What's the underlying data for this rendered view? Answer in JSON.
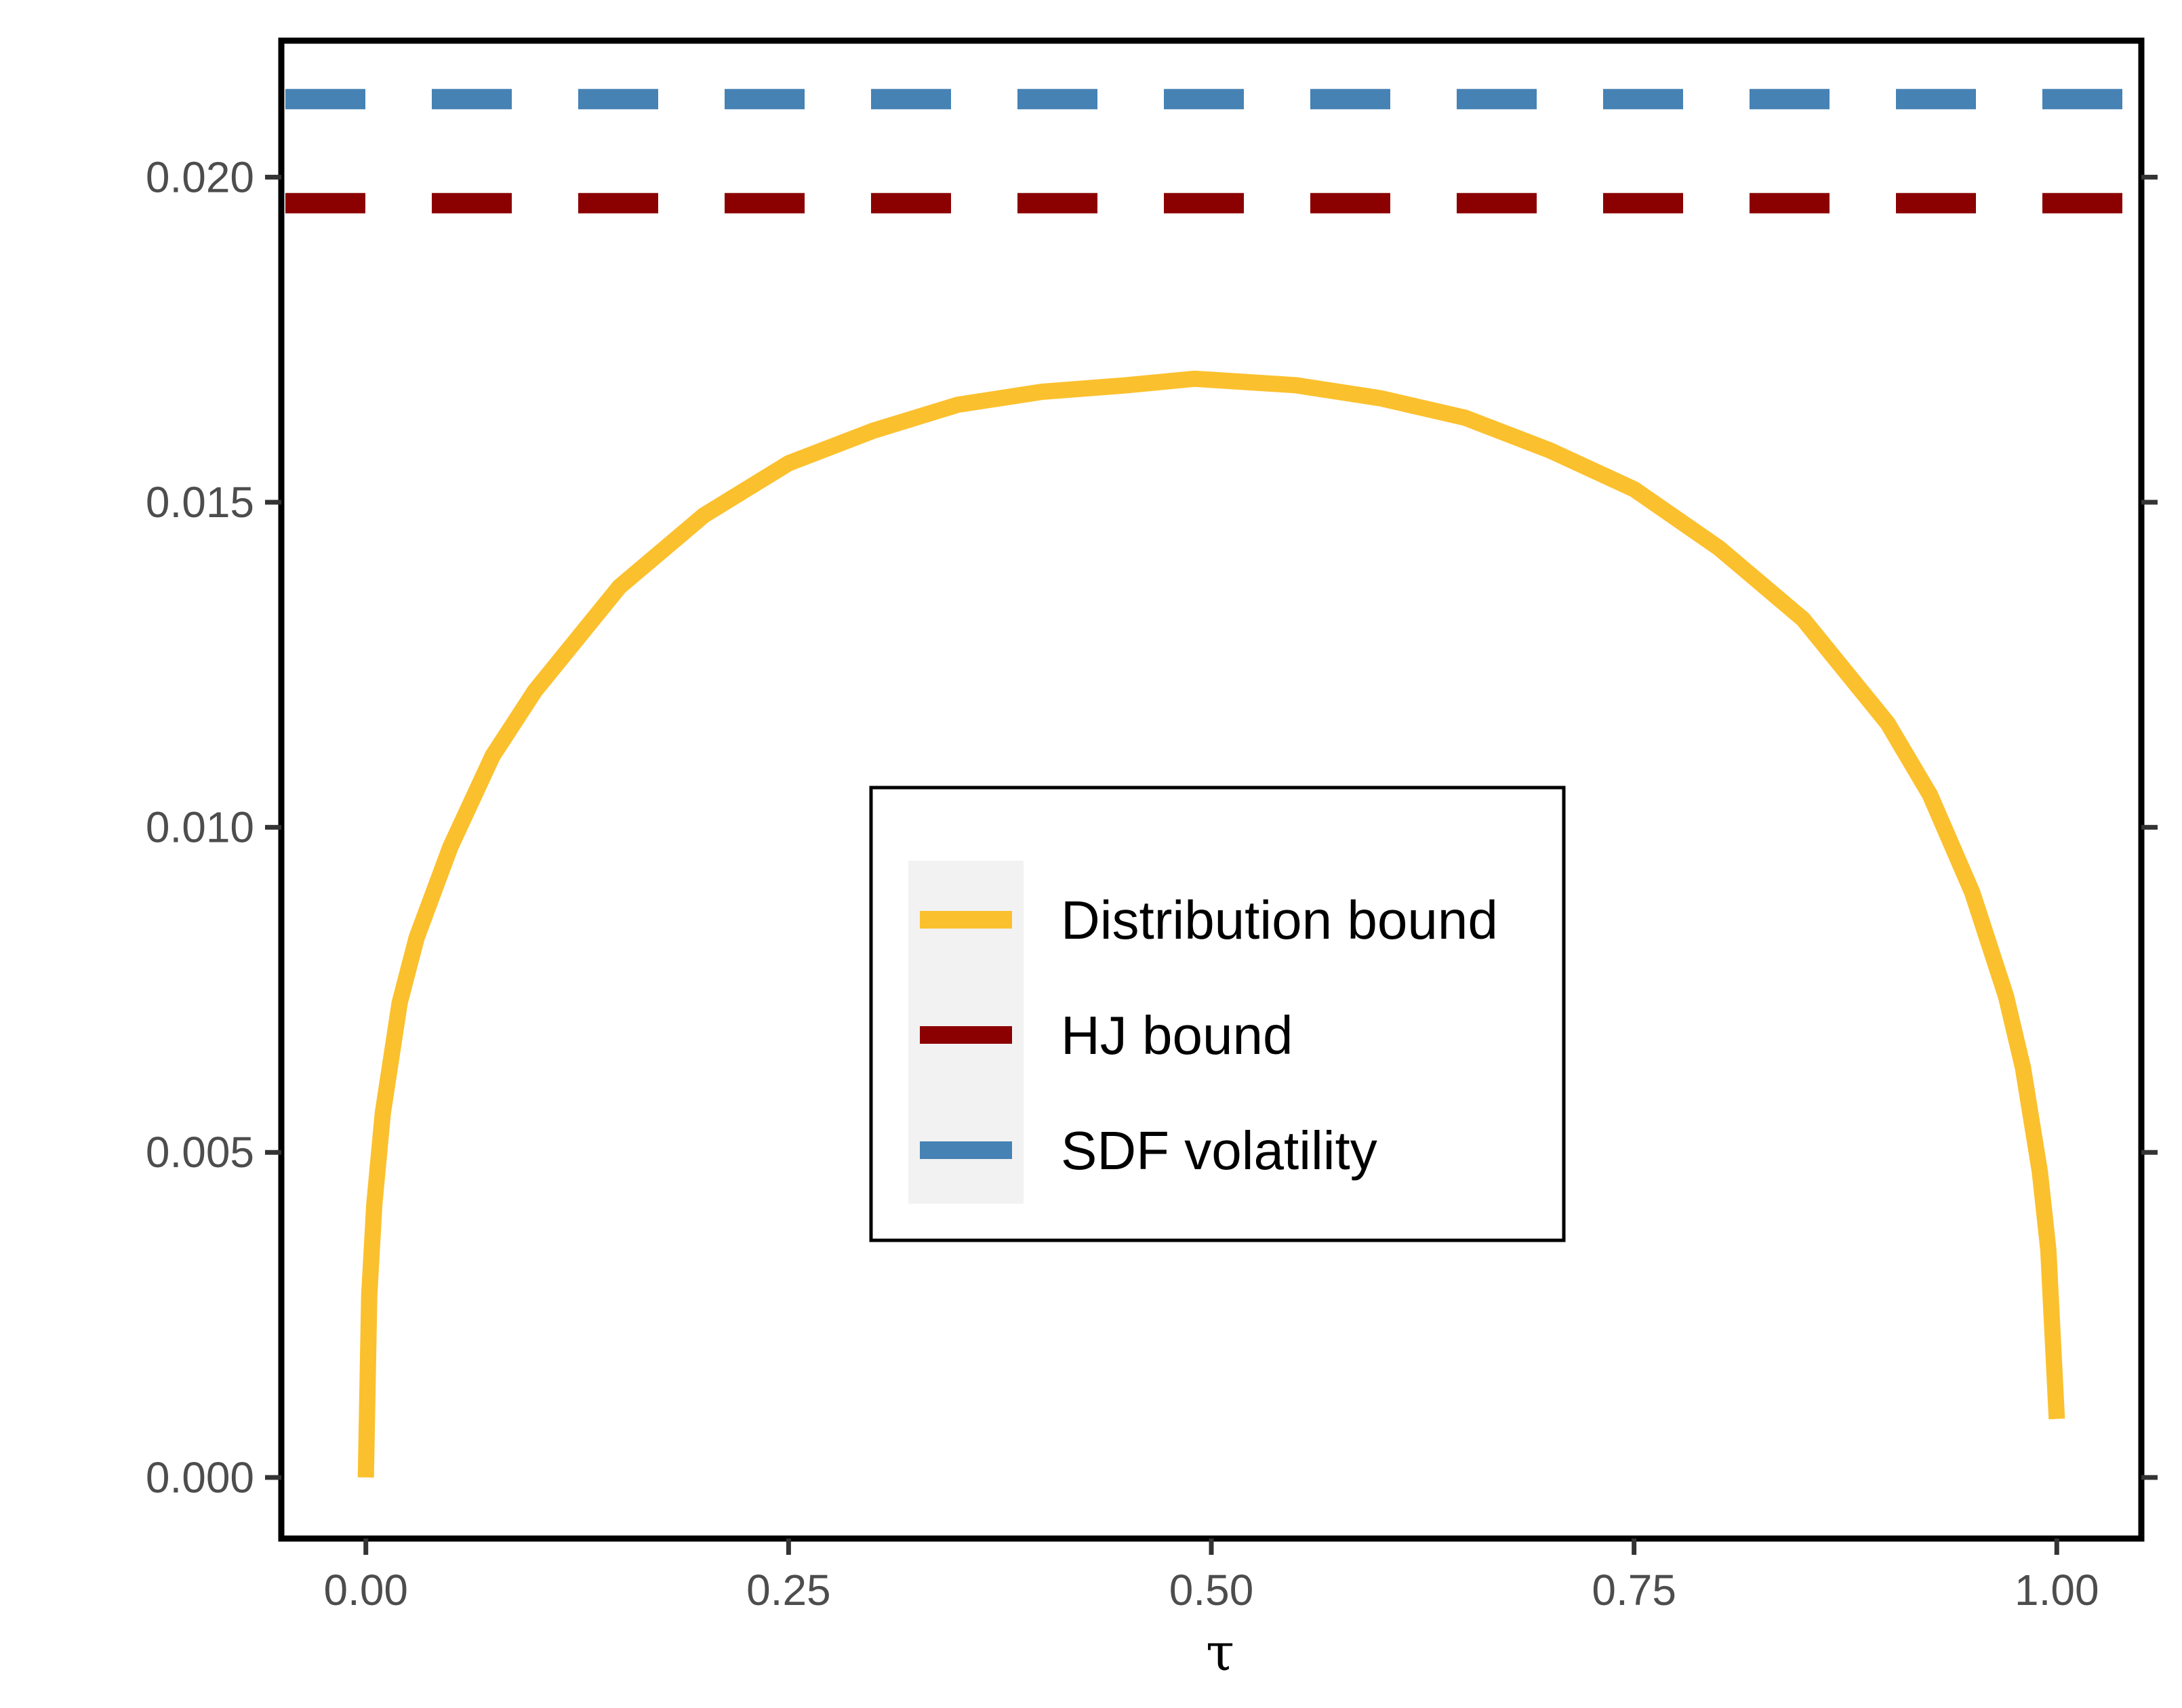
{
  "chart_data": {
    "type": "line",
    "title": "",
    "xlabel": "τ",
    "ylabel": "",
    "xlim": [
      -0.05,
      1.05
    ],
    "ylim": [
      -0.00094,
      0.0221
    ],
    "x_ticks": [
      {
        "value": 0.0,
        "label": "0.00"
      },
      {
        "value": 0.25,
        "label": "0.25"
      },
      {
        "value": 0.5,
        "label": "0.50"
      },
      {
        "value": 0.75,
        "label": "0.75"
      },
      {
        "value": 1.0,
        "label": "1.00"
      }
    ],
    "y_ticks": [
      {
        "value": 0.0,
        "label": "0.000"
      },
      {
        "value": 0.005,
        "label": "0.005"
      },
      {
        "value": 0.01,
        "label": "0.010"
      },
      {
        "value": 0.015,
        "label": "0.015"
      },
      {
        "value": 0.02,
        "label": "0.020"
      }
    ],
    "grid": false,
    "legend_position": "center",
    "series": [
      {
        "name": "Distribution bound",
        "style": "solid",
        "color": "#FBC02D",
        "x": [
          0.0,
          0.002,
          0.005,
          0.01,
          0.02,
          0.03,
          0.05,
          0.075,
          0.1,
          0.15,
          0.2,
          0.25,
          0.3,
          0.35,
          0.4,
          0.45,
          0.49,
          0.55,
          0.6,
          0.65,
          0.7,
          0.75,
          0.8,
          0.85,
          0.9,
          0.925,
          0.95,
          0.97,
          0.98,
          0.99,
          0.995,
          1.0
        ],
        "y": [
          0.0,
          0.0028,
          0.0042,
          0.0056,
          0.0073,
          0.0083,
          0.0097,
          0.0111,
          0.0121,
          0.0137,
          0.0148,
          0.0156,
          0.0161,
          0.0165,
          0.0167,
          0.0168,
          0.0169,
          0.0168,
          0.0166,
          0.0163,
          0.0158,
          0.0152,
          0.0143,
          0.0132,
          0.0116,
          0.0105,
          0.009,
          0.0074,
          0.0063,
          0.0047,
          0.0035,
          0.0009
        ]
      },
      {
        "name": "HJ bound",
        "style": "dashed",
        "color": "#8B0000",
        "x": [
          -0.05,
          1.05
        ],
        "y": [
          0.0196,
          0.0196
        ]
      },
      {
        "name": "SDF volatility",
        "style": "dashed",
        "color": "#4682B4",
        "x": [
          -0.05,
          1.05
        ],
        "y": [
          0.0212,
          0.0212
        ]
      }
    ]
  }
}
